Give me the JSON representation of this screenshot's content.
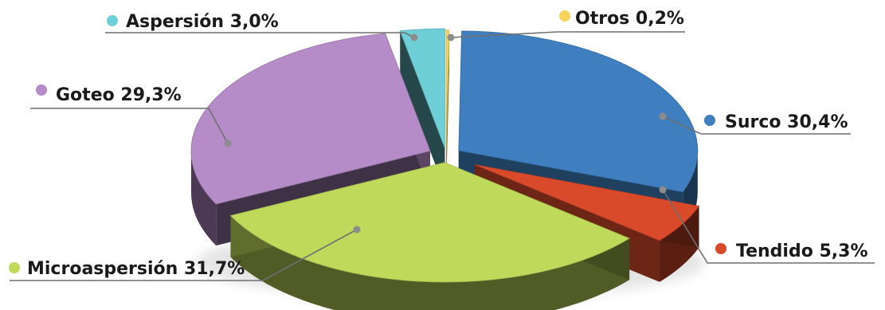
{
  "chart_data": {
    "type": "pie",
    "title": "",
    "slices": [
      {
        "name": "Otros",
        "value": 0.2,
        "label": "Otros 0,2%",
        "color": "#f6d35a"
      },
      {
        "name": "Surco",
        "value": 30.4,
        "label": "Surco 30,4%",
        "color": "#3f7fbf"
      },
      {
        "name": "Tendido",
        "value": 5.3,
        "label": "Tendido 5,3%",
        "color": "#d94a2b"
      },
      {
        "name": "Microaspersión",
        "value": 31.7,
        "label": "Microaspersión 31,7%",
        "color": "#bfd95a"
      },
      {
        "name": "Goteo",
        "value": 29.3,
        "label": "Goteo 29,3%",
        "color": "#b58bc8"
      },
      {
        "name": "Aspersión",
        "value": 3.0,
        "label": "Aspersión 3,0%",
        "color": "#6fcfd6"
      }
    ],
    "legend": "callout-labels"
  }
}
